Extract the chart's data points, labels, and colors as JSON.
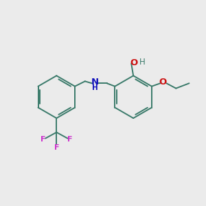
{
  "background_color": "#ebebeb",
  "bond_color": "#3a7a6a",
  "bond_lw": 1.4,
  "NH_color": "#1111bb",
  "O_color": "#cc1111",
  "F_color": "#cc33cc",
  "H_color": "#3a7a6a",
  "fig_size": [
    3.0,
    3.0
  ],
  "dpi": 100,
  "xlim": [
    0,
    10
  ],
  "ylim": [
    0,
    10
  ]
}
